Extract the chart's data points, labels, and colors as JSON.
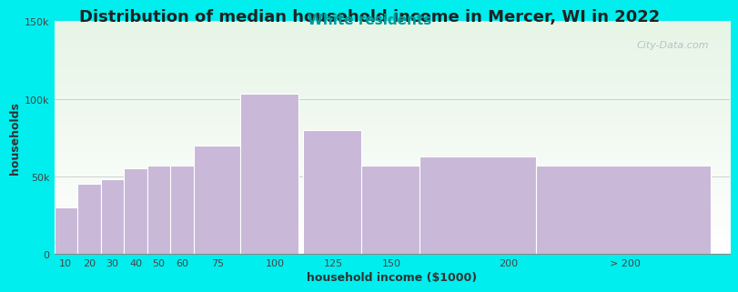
{
  "title": "Distribution of median household income in Mercer, WI in 2022",
  "subtitle": "White residents",
  "xlabel": "household income ($1000)",
  "ylabel": "households",
  "background_color": "#00EEEE",
  "plot_bg_gradient_top": "#e6f5e6",
  "plot_bg_gradient_bottom": "#ffffff",
  "bar_color": "#c9b8d8",
  "bar_edge_color": "#ffffff",
  "categories": [
    "10",
    "20",
    "30",
    "40",
    "50",
    "60",
    "75",
    "100",
    "125",
    "150",
    "200",
    "> 200"
  ],
  "left_edges": [
    5,
    15,
    25,
    35,
    45,
    55,
    65,
    85,
    112,
    137,
    162,
    212
  ],
  "widths": [
    10,
    10,
    10,
    10,
    10,
    10,
    20,
    25,
    25,
    25,
    50,
    75
  ],
  "values": [
    30000,
    45000,
    48000,
    55000,
    57000,
    57000,
    70000,
    103000,
    80000,
    57000,
    63000,
    57000
  ],
  "ylim": [
    0,
    150000
  ],
  "yticks": [
    0,
    50000,
    100000,
    150000
  ],
  "ytick_labels": [
    "0",
    "50k",
    "100k",
    "150k"
  ],
  "xtick_positions": [
    10,
    20,
    30,
    40,
    50,
    60,
    75,
    100,
    125,
    150,
    200,
    250
  ],
  "xtick_labels": [
    "10",
    "20",
    "30",
    "40",
    "50",
    "60",
    "75",
    "100",
    "125",
    "150",
    "200",
    "> 200"
  ],
  "xlim": [
    5,
    295
  ],
  "title_fontsize": 13,
  "subtitle_fontsize": 11,
  "subtitle_color": "#009999",
  "axis_label_fontsize": 9,
  "tick_fontsize": 8,
  "watermark_text": "City-Data.com",
  "watermark_color": "#b0b8c0"
}
